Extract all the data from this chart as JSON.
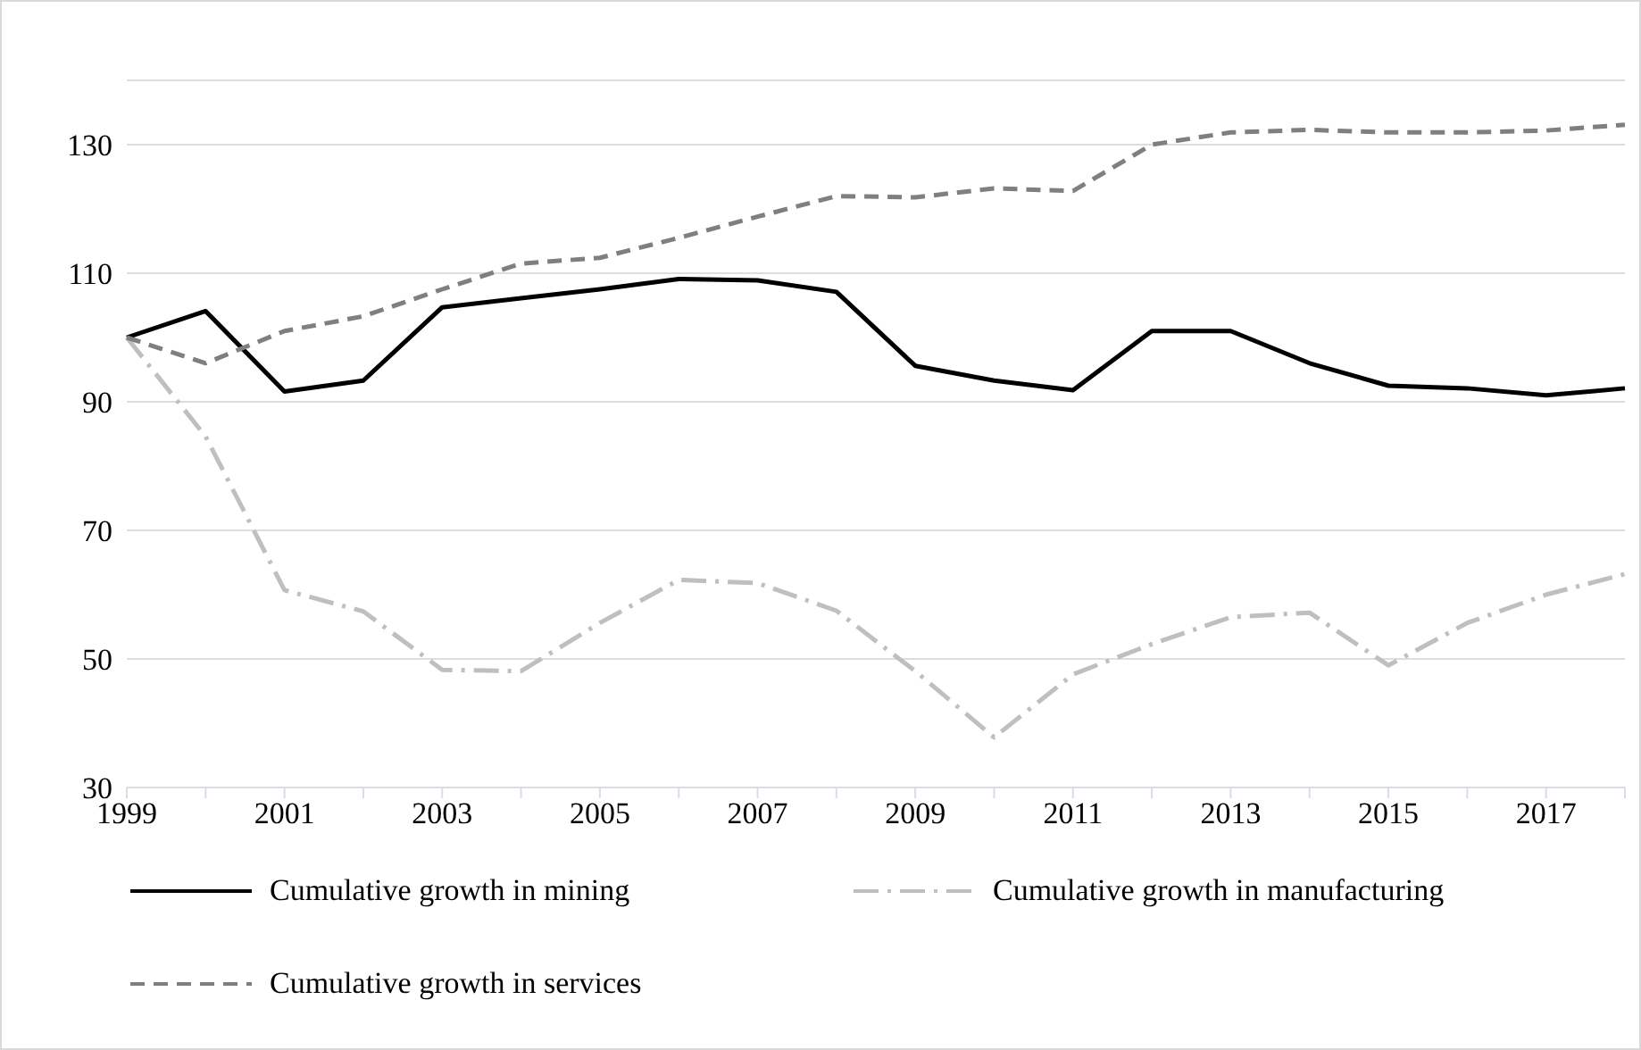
{
  "chart_data": {
    "type": "line",
    "categories": [
      "1999",
      null,
      "2001",
      null,
      "2003",
      null,
      "2005",
      null,
      "2007",
      null,
      "2009",
      null,
      "2011",
      null,
      "2013",
      null,
      "2015",
      null,
      "2017",
      null
    ],
    "series": [
      {
        "name": "Cumulative growth in mining",
        "color": "#000000",
        "line_style": "solid",
        "values": [
          100,
          104.1,
          91.6,
          93.3,
          104.7,
          106.1,
          107.5,
          109.1,
          108.9,
          107.1,
          95.6,
          93.3,
          91.8,
          101,
          101,
          96,
          92.5,
          92.1,
          91,
          92.1
        ]
      },
      {
        "name": "Cumulative growth in manufacturing",
        "color": "#bfbfbf",
        "line_style": "dashdot",
        "values": [
          100,
          84.6,
          60.7,
          57.4,
          48.3,
          48.1,
          55.6,
          62.3,
          61.8,
          57.5,
          48.1,
          37.8,
          47.6,
          52.3,
          56.5,
          57.2,
          49,
          55.6,
          60,
          63.2
        ]
      },
      {
        "name": "Cumulative growth in services",
        "color": "#7f7f7f",
        "line_style": "dashed",
        "values": [
          100,
          96,
          101,
          103.3,
          107.5,
          111.5,
          112.4,
          115.5,
          118.8,
          122,
          121.8,
          123.2,
          122.8,
          130,
          131.9,
          132.3,
          131.9,
          131.9,
          132.2,
          133.1
        ]
      }
    ],
    "ylim": [
      30,
      140
    ],
    "yticks": [
      30,
      50,
      70,
      90,
      110,
      130
    ],
    "grid": "y",
    "legend": "bottom",
    "marker": "none"
  }
}
